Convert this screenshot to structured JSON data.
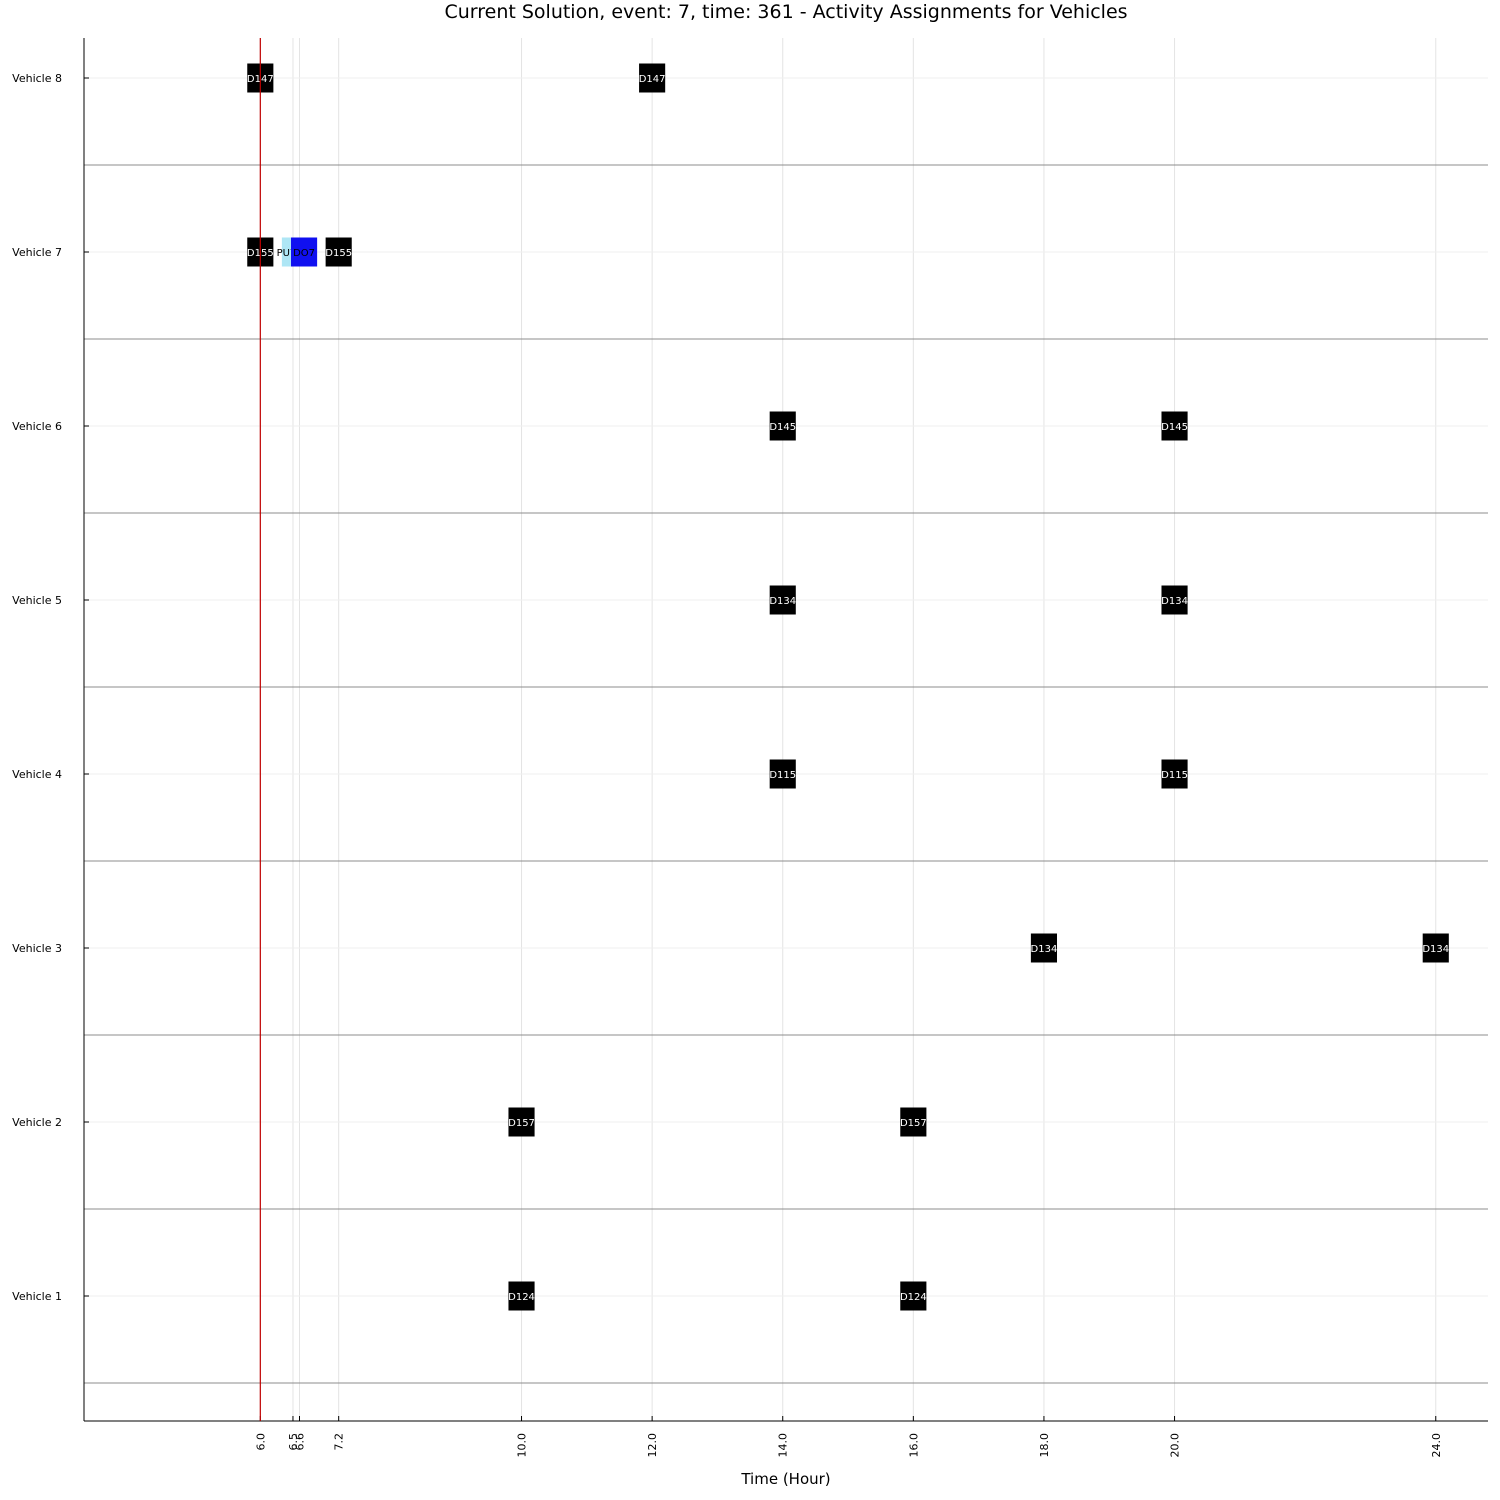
{
  "chart_data": {
    "type": "gantt",
    "title": "Current Solution, event: 7, time: 361 - Activity Assignments for Vehicles",
    "xlabel": "Time (Hour)",
    "ylabel": "",
    "xlim": [
      3.3,
      24.8
    ],
    "grid": true,
    "current_time_marker": 6.0,
    "marker_color": "#c00000",
    "x_ticks": [
      "6.0",
      "6.5",
      "6.6",
      "7.2",
      "10.0",
      "12.0",
      "14.0",
      "16.0",
      "18.0",
      "20.0",
      "24.0"
    ],
    "x_tick_values": [
      6.0,
      6.5,
      6.6,
      7.2,
      10.0,
      12.0,
      14.0,
      16.0,
      18.0,
      20.0,
      24.0
    ],
    "rows": [
      "Vehicle 1",
      "Vehicle 2",
      "Vehicle 3",
      "Vehicle 4",
      "Vehicle 5",
      "Vehicle 6",
      "Vehicle 7",
      "Vehicle 8"
    ],
    "colors": {
      "depot": "#000000",
      "pickup": "#aee6f5",
      "dropoff": "#1010f0",
      "depot_text": "#ffffff",
      "pickup_text": "#000000",
      "dropoff_text": "#000000"
    },
    "activities": [
      {
        "row": 1,
        "start": 9.8,
        "end": 10.2,
        "label": "D124",
        "kind": "depot"
      },
      {
        "row": 1,
        "start": 15.8,
        "end": 16.2,
        "label": "D124",
        "kind": "depot"
      },
      {
        "row": 2,
        "start": 9.8,
        "end": 10.2,
        "label": "D157",
        "kind": "depot"
      },
      {
        "row": 2,
        "start": 15.8,
        "end": 16.2,
        "label": "D157",
        "kind": "depot"
      },
      {
        "row": 3,
        "start": 17.8,
        "end": 18.2,
        "label": "D134",
        "kind": "depot"
      },
      {
        "row": 3,
        "start": 23.8,
        "end": 24.2,
        "label": "D134",
        "kind": "depot"
      },
      {
        "row": 4,
        "start": 13.8,
        "end": 14.2,
        "label": "D115",
        "kind": "depot"
      },
      {
        "row": 4,
        "start": 19.8,
        "end": 20.2,
        "label": "D115",
        "kind": "depot"
      },
      {
        "row": 5,
        "start": 13.8,
        "end": 14.2,
        "label": "D134",
        "kind": "depot"
      },
      {
        "row": 5,
        "start": 19.8,
        "end": 20.2,
        "label": "D134",
        "kind": "depot"
      },
      {
        "row": 6,
        "start": 13.8,
        "end": 14.2,
        "label": "D145",
        "kind": "depot"
      },
      {
        "row": 6,
        "start": 19.8,
        "end": 20.2,
        "label": "D145",
        "kind": "depot"
      },
      {
        "row": 7,
        "start": 5.8,
        "end": 6.2,
        "label": "D155",
        "kind": "depot"
      },
      {
        "row": 7,
        "start": 6.33,
        "end": 6.47,
        "label": "PU7",
        "kind": "pickup"
      },
      {
        "row": 7,
        "start": 6.47,
        "end": 6.87,
        "label": "DO7",
        "kind": "dropoff"
      },
      {
        "row": 7,
        "start": 7.0,
        "end": 7.4,
        "label": "D155",
        "kind": "depot"
      },
      {
        "row": 8,
        "start": 5.8,
        "end": 6.2,
        "label": "D147",
        "kind": "depot"
      },
      {
        "row": 8,
        "start": 11.8,
        "end": 12.2,
        "label": "D147",
        "kind": "depot"
      }
    ]
  }
}
